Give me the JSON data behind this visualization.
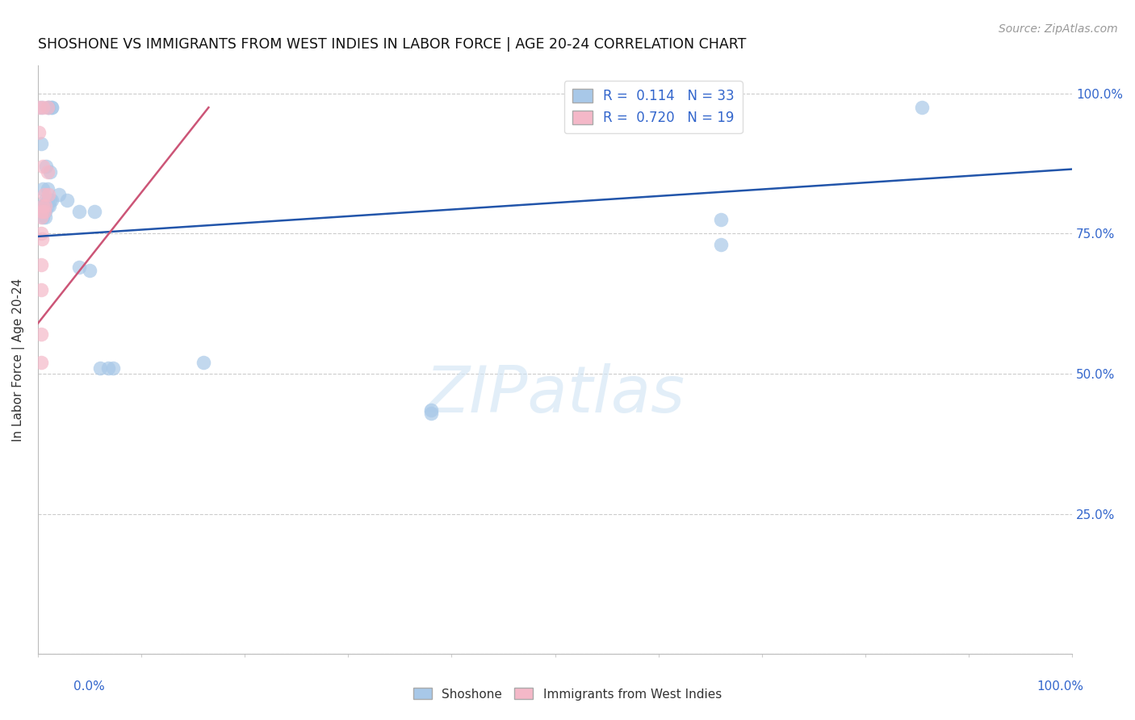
{
  "title": "SHOSHONE VS IMMIGRANTS FROM WEST INDIES IN LABOR FORCE | AGE 20-24 CORRELATION CHART",
  "source": "Source: ZipAtlas.com",
  "ylabel": "In Labor Force | Age 20-24",
  "watermark": "ZIPatlas",
  "blue_r": 0.114,
  "pink_r": 0.72,
  "blue_n": 33,
  "pink_n": 19,
  "blue_color": "#a8c8e8",
  "pink_color": "#f4b8c8",
  "blue_line_color": "#2255aa",
  "pink_line_color": "#cc5577",
  "blue_scatter": [
    [
      0.003,
      0.975
    ],
    [
      0.01,
      0.975
    ],
    [
      0.01,
      0.975
    ],
    [
      0.013,
      0.975
    ],
    [
      0.013,
      0.975
    ],
    [
      0.003,
      0.91
    ],
    [
      0.008,
      0.87
    ],
    [
      0.012,
      0.86
    ],
    [
      0.005,
      0.83
    ],
    [
      0.009,
      0.83
    ],
    [
      0.007,
      0.81
    ],
    [
      0.009,
      0.81
    ],
    [
      0.012,
      0.81
    ],
    [
      0.013,
      0.81
    ],
    [
      0.005,
      0.8
    ],
    [
      0.007,
      0.8
    ],
    [
      0.009,
      0.8
    ],
    [
      0.011,
      0.8
    ],
    [
      0.005,
      0.79
    ],
    [
      0.007,
      0.79
    ],
    [
      0.005,
      0.78
    ],
    [
      0.007,
      0.78
    ],
    [
      0.02,
      0.82
    ],
    [
      0.028,
      0.81
    ],
    [
      0.04,
      0.79
    ],
    [
      0.055,
      0.79
    ],
    [
      0.04,
      0.69
    ],
    [
      0.05,
      0.685
    ],
    [
      0.06,
      0.51
    ],
    [
      0.068,
      0.51
    ],
    [
      0.073,
      0.51
    ],
    [
      0.16,
      0.52
    ],
    [
      0.38,
      0.435
    ]
  ],
  "pink_scatter": [
    [
      0.001,
      0.975
    ],
    [
      0.001,
      0.93
    ],
    [
      0.005,
      0.975
    ],
    [
      0.009,
      0.975
    ],
    [
      0.005,
      0.87
    ],
    [
      0.009,
      0.86
    ],
    [
      0.006,
      0.82
    ],
    [
      0.01,
      0.82
    ],
    [
      0.005,
      0.8
    ],
    [
      0.007,
      0.8
    ],
    [
      0.004,
      0.79
    ],
    [
      0.006,
      0.79
    ],
    [
      0.003,
      0.78
    ],
    [
      0.003,
      0.75
    ],
    [
      0.004,
      0.74
    ],
    [
      0.003,
      0.695
    ],
    [
      0.003,
      0.65
    ],
    [
      0.003,
      0.57
    ],
    [
      0.003,
      0.52
    ]
  ],
  "xmin": 0.0,
  "xmax": 1.0,
  "ymin": 0.0,
  "ymax": 1.05,
  "background_color": "#ffffff",
  "grid_color": "#cccccc",
  "blue_line_x": [
    0.0,
    1.0
  ],
  "blue_line_y": [
    0.745,
    0.865
  ],
  "pink_line_x": [
    0.0,
    0.165
  ],
  "pink_line_y": [
    0.59,
    0.975
  ]
}
